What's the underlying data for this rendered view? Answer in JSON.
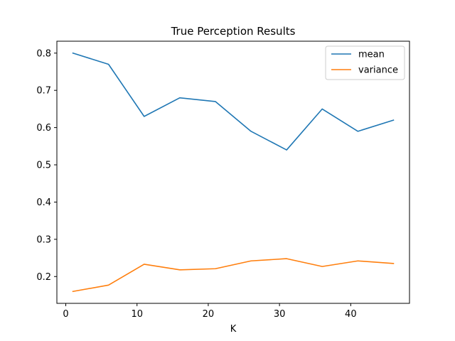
{
  "chart_data": {
    "type": "line",
    "title": "True Perception Results",
    "xlabel": "K",
    "ylabel": "",
    "x": [
      1,
      6,
      11,
      16,
      21,
      26,
      31,
      36,
      41,
      46
    ],
    "xlim": [
      -1.25,
      48.25
    ],
    "ylim": [
      0.128,
      0.832
    ],
    "xticks": [
      0,
      10,
      20,
      30,
      40
    ],
    "yticks": [
      0.2,
      0.3,
      0.4,
      0.5,
      0.6,
      0.7,
      0.8
    ],
    "grid": false,
    "legend_position": "top-right",
    "series": [
      {
        "name": "mean",
        "color": "#1f77b4",
        "values": [
          0.8,
          0.77,
          0.63,
          0.68,
          0.67,
          0.59,
          0.54,
          0.65,
          0.59,
          0.62
        ]
      },
      {
        "name": "variance",
        "color": "#ff7f0e",
        "values": [
          0.16,
          0.177,
          0.233,
          0.218,
          0.221,
          0.242,
          0.248,
          0.227,
          0.242,
          0.235
        ]
      }
    ]
  }
}
